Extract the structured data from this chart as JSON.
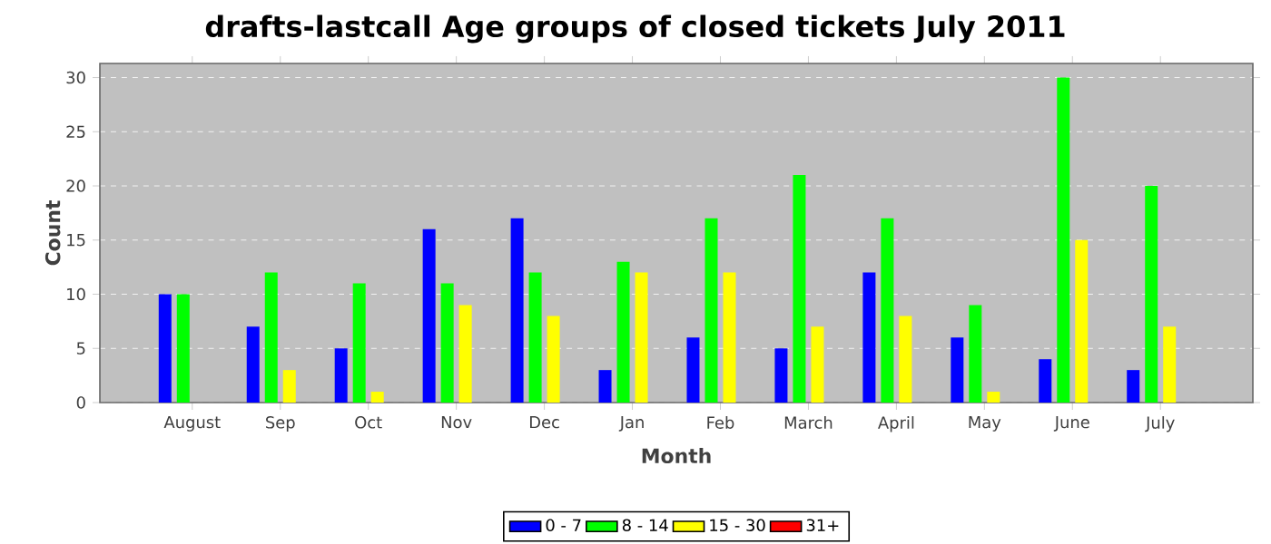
{
  "chart_data": {
    "type": "bar",
    "title": "drafts-lastcall Age groups of closed tickets July 2011",
    "xlabel": "Month",
    "ylabel": "Count",
    "categories": [
      "August",
      "Sep",
      "Oct",
      "Nov",
      "Dec",
      "Jan",
      "Feb",
      "March",
      "April",
      "May",
      "June",
      "July"
    ],
    "series": [
      {
        "name": "0 - 7",
        "color": "#0000ff",
        "values": [
          10,
          7,
          5,
          16,
          17,
          3,
          6,
          5,
          12,
          6,
          4,
          3
        ]
      },
      {
        "name": "8 - 14",
        "color": "#00ff00",
        "values": [
          10,
          12,
          11,
          11,
          12,
          13,
          17,
          21,
          17,
          9,
          30,
          20
        ]
      },
      {
        "name": "15 - 30",
        "color": "#ffff00",
        "values": [
          0,
          3,
          1,
          9,
          8,
          12,
          12,
          7,
          8,
          1,
          15,
          7
        ]
      },
      {
        "name": "31+",
        "color": "#ff0000",
        "values": [
          0,
          0,
          0,
          0,
          0,
          0,
          0,
          0,
          0,
          0,
          0,
          0
        ]
      }
    ],
    "ylim": [
      0,
      31.3
    ],
    "yticks": [
      0,
      5,
      10,
      15,
      20,
      25,
      30
    ],
    "grid": "y",
    "legend": "bottom"
  }
}
